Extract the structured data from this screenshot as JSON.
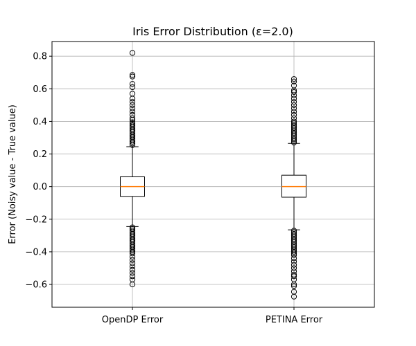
{
  "chart_data": {
    "type": "box",
    "title": "Iris Error Distribution (ε=2.0)",
    "xlabel": "",
    "ylabel": "Error (Noisy value - True value)",
    "ylim": [
      -0.74,
      0.89
    ],
    "yticks": [
      -0.6,
      -0.4,
      -0.2,
      0.0,
      0.2,
      0.4,
      0.6,
      0.8
    ],
    "ytick_labels": [
      "−0.6",
      "−0.4",
      "−0.2",
      "0.0",
      "0.2",
      "0.4",
      "0.6",
      "0.8"
    ],
    "grid": true,
    "categories": [
      "OpenDP Error",
      "PETINA Error"
    ],
    "boxes": [
      {
        "name": "OpenDP Error",
        "q1": -0.06,
        "median": 0.0,
        "q3": 0.06,
        "whisker_low": -0.245,
        "whisker_high": 0.245,
        "outliers_high": [
          0.255,
          0.265,
          0.275,
          0.285,
          0.295,
          0.305,
          0.315,
          0.325,
          0.335,
          0.345,
          0.355,
          0.365,
          0.375,
          0.385,
          0.395,
          0.41,
          0.42,
          0.44,
          0.46,
          0.48,
          0.5,
          0.52,
          0.54,
          0.57,
          0.61,
          0.63,
          0.675,
          0.685,
          0.82
        ],
        "outliers_low": [
          -0.25,
          -0.26,
          -0.27,
          -0.28,
          -0.29,
          -0.3,
          -0.31,
          -0.32,
          -0.33,
          -0.34,
          -0.35,
          -0.36,
          -0.37,
          -0.38,
          -0.39,
          -0.4,
          -0.41,
          -0.43,
          -0.45,
          -0.47,
          -0.49,
          -0.51,
          -0.53,
          -0.55,
          -0.57,
          -0.6
        ]
      },
      {
        "name": "PETINA Error",
        "q1": -0.065,
        "median": 0.0,
        "q3": 0.07,
        "whisker_low": -0.265,
        "whisker_high": 0.265,
        "outliers_high": [
          0.27,
          0.28,
          0.29,
          0.3,
          0.31,
          0.32,
          0.33,
          0.34,
          0.35,
          0.36,
          0.37,
          0.38,
          0.39,
          0.4,
          0.42,
          0.44,
          0.46,
          0.48,
          0.5,
          0.52,
          0.54,
          0.56,
          0.58,
          0.59,
          0.62,
          0.645,
          0.66
        ],
        "outliers_low": [
          -0.27,
          -0.28,
          -0.29,
          -0.3,
          -0.31,
          -0.32,
          -0.33,
          -0.34,
          -0.35,
          -0.36,
          -0.37,
          -0.38,
          -0.39,
          -0.4,
          -0.41,
          -0.42,
          -0.44,
          -0.46,
          -0.48,
          -0.5,
          -0.52,
          -0.54,
          -0.55,
          -0.57,
          -0.6,
          -0.61,
          -0.645,
          -0.675
        ]
      }
    ],
    "colors": {
      "median": "#ff7f0e",
      "box": "#000000",
      "grid": "#b0b0b0",
      "background": "#ffffff"
    }
  }
}
